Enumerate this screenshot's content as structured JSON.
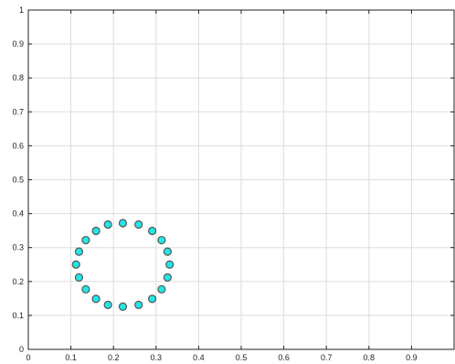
{
  "chart_data": {
    "type": "scatter",
    "title": "",
    "xlabel": "",
    "ylabel": "",
    "xlim": [
      0,
      1
    ],
    "ylim": [
      0,
      1
    ],
    "grid": true,
    "x_ticks": [
      "0",
      "0.1",
      "0.2",
      "0.3",
      "0.4",
      "0.5",
      "0.6",
      "0.7",
      "0.8",
      "0.9"
    ],
    "y_ticks": [
      "0",
      "0.1",
      "0.2",
      "0.3",
      "0.4",
      "0.5",
      "0.6",
      "0.7",
      "0.8",
      "0.9",
      "1"
    ],
    "series": [
      {
        "marker_fill": "#22e6e6",
        "marker_edge": "#555555",
        "x": [
          0.332,
          0.327,
          0.313,
          0.291,
          0.259,
          0.222,
          0.187,
          0.159,
          0.135,
          0.119,
          0.112,
          0.119,
          0.135,
          0.159,
          0.187,
          0.222,
          0.259,
          0.291,
          0.313,
          0.327
        ],
        "y": [
          0.25,
          0.288,
          0.322,
          0.349,
          0.368,
          0.372,
          0.368,
          0.349,
          0.322,
          0.288,
          0.25,
          0.212,
          0.177,
          0.149,
          0.131,
          0.126,
          0.131,
          0.149,
          0.177,
          0.212
        ]
      }
    ]
  }
}
